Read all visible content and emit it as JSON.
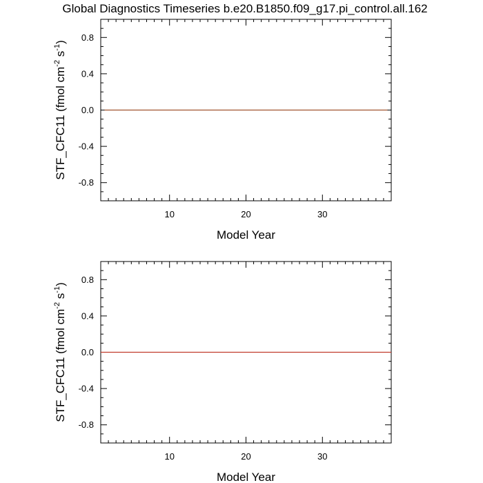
{
  "figure": {
    "title": "Global Diagnostics Timeseries b.e20.B1850.f09_g17.pi_control.all.162"
  },
  "chart_data": [
    {
      "type": "line",
      "title": "",
      "xlabel": "Model Year",
      "ylabel": {
        "prefix": "STF_CFC11 (fmol cm",
        "exp1": "-2",
        "middle": " s",
        "exp2": "-1",
        "suffix": ")"
      },
      "xlim": [
        1,
        39
      ],
      "ylim": [
        -1,
        1
      ],
      "x_ticks": [
        10,
        20,
        30
      ],
      "x_tick_labels": [
        "10",
        "20",
        "30"
      ],
      "y_ticks": [
        -0.8,
        -0.4,
        0.0,
        0.4,
        0.8
      ],
      "y_tick_labels": [
        "-0.8",
        "-0.4",
        "0.0",
        "0.4",
        "0.8"
      ],
      "grid": false,
      "series": [
        {
          "color": "#a0522d",
          "x": [
            1.5,
            38.5
          ],
          "y": [
            0.0,
            0.0
          ]
        }
      ],
      "reference_line": {
        "y": 0.0,
        "color": "#000000"
      }
    },
    {
      "type": "line",
      "title": "",
      "xlabel": "Model Year",
      "ylabel": {
        "prefix": "STF_CFC11 (fmol cm",
        "exp1": "-2",
        "middle": " s",
        "exp2": "-1",
        "suffix": ")"
      },
      "xlim": [
        1,
        39
      ],
      "ylim": [
        -1,
        1
      ],
      "x_ticks": [
        10,
        20,
        30
      ],
      "x_tick_labels": [
        "10",
        "20",
        "30"
      ],
      "y_ticks": [
        -0.8,
        -0.4,
        0.0,
        0.4,
        0.8
      ],
      "y_tick_labels": [
        "-0.8",
        "-0.4",
        "0.0",
        "0.4",
        "0.8"
      ],
      "grid": false,
      "series": [
        {
          "color": "#c0392b",
          "x": [
            1,
            39
          ],
          "y": [
            0.0,
            0.0
          ]
        }
      ],
      "reference_line": {
        "y": 0.0,
        "color": "#000000"
      }
    }
  ]
}
